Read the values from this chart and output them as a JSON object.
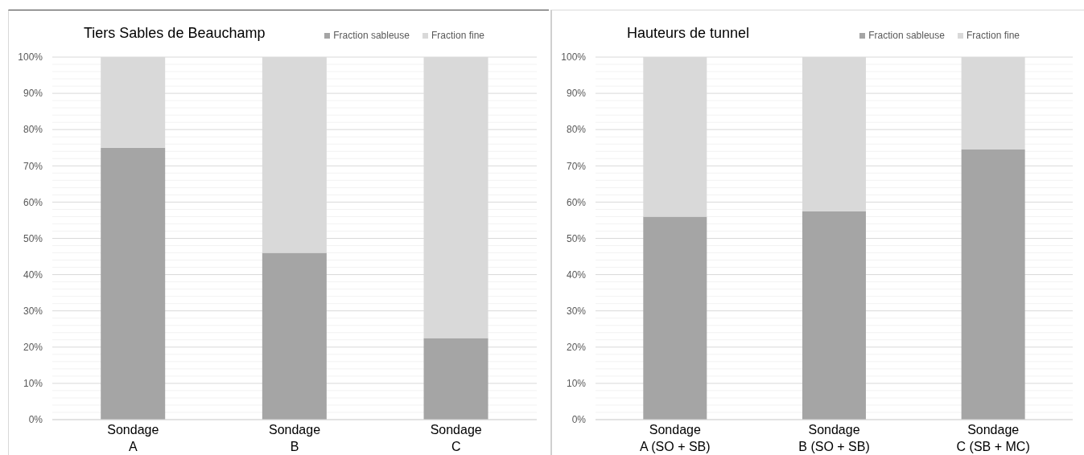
{
  "chart_data": [
    {
      "type": "bar",
      "title": "Tiers Sables de Beauchamp",
      "categories": [
        "Sondage A",
        "Sondage B",
        "Sondage C"
      ],
      "series": [
        {
          "name": "Fraction sableuse",
          "color": "#a5a5a5",
          "values": [
            75,
            46,
            22.5
          ]
        },
        {
          "name": "Fraction fine",
          "color": "#d9d9d9",
          "values": [
            25,
            54,
            77.5
          ]
        }
      ],
      "stacked": true,
      "ylim": [
        0,
        100
      ],
      "yticks": [
        {
          "value": 0,
          "label": "0%"
        },
        {
          "value": 2,
          "label": null
        },
        {
          "value": 4,
          "label": null
        },
        {
          "value": 6,
          "label": null
        },
        {
          "value": 8,
          "label": null
        },
        {
          "value": 10,
          "label": "10%"
        },
        {
          "value": 12,
          "label": null
        },
        {
          "value": 14,
          "label": null
        },
        {
          "value": 16,
          "label": null
        },
        {
          "value": 18,
          "label": null
        },
        {
          "value": 20,
          "label": "20%"
        },
        {
          "value": 22,
          "label": null
        },
        {
          "value": 24,
          "label": null
        },
        {
          "value": 26,
          "label": null
        },
        {
          "value": 28,
          "label": null
        },
        {
          "value": 30,
          "label": "30%"
        },
        {
          "value": 32,
          "label": null
        },
        {
          "value": 34,
          "label": null
        },
        {
          "value": 36,
          "label": null
        },
        {
          "value": 38,
          "label": null
        },
        {
          "value": 40,
          "label": "40%"
        },
        {
          "value": 42,
          "label": null
        },
        {
          "value": 44,
          "label": null
        },
        {
          "value": 46,
          "label": null
        },
        {
          "value": 48,
          "label": null
        },
        {
          "value": 50,
          "label": "50%"
        },
        {
          "value": 52,
          "label": null
        },
        {
          "value": 54,
          "label": null
        },
        {
          "value": 56,
          "label": null
        },
        {
          "value": 58,
          "label": null
        },
        {
          "value": 60,
          "label": "60%"
        },
        {
          "value": 62,
          "label": null
        },
        {
          "value": 64,
          "label": null
        },
        {
          "value": 66,
          "label": null
        },
        {
          "value": 68,
          "label": null
        },
        {
          "value": 70,
          "label": "70%"
        },
        {
          "value": 72,
          "label": null
        },
        {
          "value": 74,
          "label": null
        },
        {
          "value": 76,
          "label": null
        },
        {
          "value": 78,
          "label": null
        },
        {
          "value": 80,
          "label": "80%"
        },
        {
          "value": 82,
          "label": null
        },
        {
          "value": 84,
          "label": null
        },
        {
          "value": 86,
          "label": null
        },
        {
          "value": 88,
          "label": null
        },
        {
          "value": 90,
          "label": "90%"
        },
        {
          "value": 92,
          "label": null
        },
        {
          "value": 94,
          "label": null
        },
        {
          "value": 96,
          "label": null
        },
        {
          "value": 98,
          "label": null
        },
        {
          "value": 100,
          "label": "100%"
        }
      ],
      "grid": "y",
      "legend": "top right"
    },
    {
      "type": "bar",
      "title": "Hauteurs de tunnel",
      "categories": [
        "Sondage A (SO + SB)",
        "Sondage B (SO + SB)",
        "Sondage C (SB + MC)"
      ],
      "series": [
        {
          "name": "Fraction sableuse",
          "color": "#a5a5a5",
          "values": [
            56,
            57.5,
            74.5
          ]
        },
        {
          "name": "Fraction fine",
          "color": "#d9d9d9",
          "values": [
            44,
            42.5,
            25.5
          ]
        }
      ],
      "stacked": true,
      "ylim": [
        0,
        100
      ],
      "yticks": [
        {
          "value": 0,
          "label": "0%"
        },
        {
          "value": 2,
          "label": null
        },
        {
          "value": 4,
          "label": null
        },
        {
          "value": 6,
          "label": null
        },
        {
          "value": 8,
          "label": null
        },
        {
          "value": 10,
          "label": "10%"
        },
        {
          "value": 12,
          "label": null
        },
        {
          "value": 14,
          "label": null
        },
        {
          "value": 16,
          "label": null
        },
        {
          "value": 18,
          "label": null
        },
        {
          "value": 20,
          "label": "20%"
        },
        {
          "value": 22,
          "label": null
        },
        {
          "value": 24,
          "label": null
        },
        {
          "value": 26,
          "label": null
        },
        {
          "value": 28,
          "label": null
        },
        {
          "value": 30,
          "label": "30%"
        },
        {
          "value": 32,
          "label": null
        },
        {
          "value": 34,
          "label": null
        },
        {
          "value": 36,
          "label": null
        },
        {
          "value": 38,
          "label": null
        },
        {
          "value": 40,
          "label": "40%"
        },
        {
          "value": 42,
          "label": null
        },
        {
          "value": 44,
          "label": null
        },
        {
          "value": 46,
          "label": null
        },
        {
          "value": 48,
          "label": null
        },
        {
          "value": 50,
          "label": "50%"
        },
        {
          "value": 52,
          "label": null
        },
        {
          "value": 54,
          "label": null
        },
        {
          "value": 56,
          "label": null
        },
        {
          "value": 58,
          "label": null
        },
        {
          "value": 60,
          "label": "60%"
        },
        {
          "value": 62,
          "label": null
        },
        {
          "value": 64,
          "label": null
        },
        {
          "value": 66,
          "label": null
        },
        {
          "value": 68,
          "label": null
        },
        {
          "value": 70,
          "label": "70%"
        },
        {
          "value": 72,
          "label": null
        },
        {
          "value": 74,
          "label": null
        },
        {
          "value": 76,
          "label": null
        },
        {
          "value": 78,
          "label": null
        },
        {
          "value": 80,
          "label": "80%"
        },
        {
          "value": 82,
          "label": null
        },
        {
          "value": 84,
          "label": null
        },
        {
          "value": 86,
          "label": null
        },
        {
          "value": 88,
          "label": null
        },
        {
          "value": 90,
          "label": "90%"
        },
        {
          "value": 92,
          "label": null
        },
        {
          "value": 94,
          "label": null
        },
        {
          "value": 96,
          "label": null
        },
        {
          "value": 98,
          "label": null
        },
        {
          "value": 100,
          "label": "100%"
        }
      ],
      "grid": "y",
      "legend": "top right"
    }
  ]
}
